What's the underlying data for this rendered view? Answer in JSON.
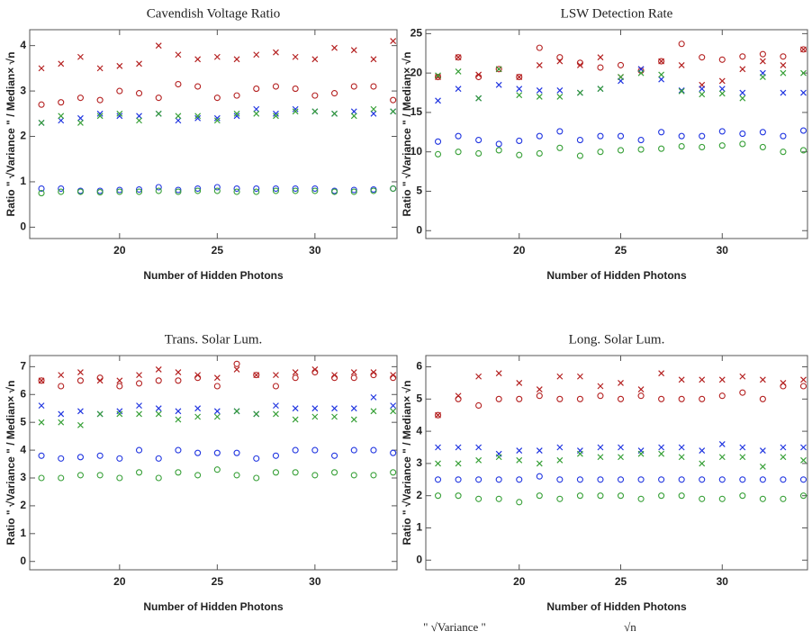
{
  "chart_data": [
    {
      "type": "scatter",
      "title": "Cavendish Voltage Ratio",
      "xlabel": "Number of Hidden Photons",
      "ylabel": "Ratio \" √Variance \" / Median× √n",
      "x": [
        16,
        17,
        18,
        19,
        20,
        21,
        22,
        23,
        24,
        25,
        26,
        27,
        28,
        29,
        30,
        31,
        32,
        33,
        34
      ],
      "xlim": [
        15.4,
        34.2
      ],
      "xticks": [
        20,
        25,
        30
      ],
      "ylim": [
        -0.25,
        4.35
      ],
      "yticks": [
        0,
        1,
        2,
        3,
        4
      ],
      "series": [
        {
          "color": "#b42020",
          "marker": "x",
          "values": [
            3.5,
            3.6,
            3.75,
            3.5,
            3.55,
            3.6,
            4.0,
            3.8,
            3.7,
            3.75,
            3.7,
            3.8,
            3.85,
            3.75,
            3.7,
            3.95,
            3.9,
            3.7,
            4.1
          ]
        },
        {
          "color": "#b42020",
          "marker": "o",
          "values": [
            2.7,
            2.75,
            2.85,
            2.8,
            3.0,
            2.95,
            2.85,
            3.15,
            3.1,
            2.85,
            2.9,
            3.05,
            3.1,
            3.05,
            2.9,
            2.95,
            3.1,
            3.1,
            2.8
          ]
        },
        {
          "color": "#2035e0",
          "marker": "x",
          "values": [
            2.3,
            2.35,
            2.4,
            2.5,
            2.45,
            2.45,
            2.5,
            2.35,
            2.4,
            2.4,
            2.45,
            2.6,
            2.5,
            2.6,
            2.55,
            2.5,
            2.55,
            2.5,
            2.55
          ]
        },
        {
          "color": "#2035e0",
          "marker": "o",
          "values": [
            0.85,
            0.85,
            0.8,
            0.8,
            0.82,
            0.83,
            0.88,
            0.82,
            0.85,
            0.88,
            0.85,
            0.85,
            0.85,
            0.85,
            0.85,
            0.8,
            0.82,
            0.83,
            0.85
          ]
        },
        {
          "color": "#38a038",
          "marker": "x",
          "values": [
            2.3,
            2.45,
            2.3,
            2.45,
            2.5,
            2.35,
            2.5,
            2.45,
            2.45,
            2.35,
            2.5,
            2.5,
            2.45,
            2.55,
            2.55,
            2.5,
            2.45,
            2.6,
            2.55
          ]
        },
        {
          "color": "#38a038",
          "marker": "o",
          "values": [
            0.75,
            0.78,
            0.78,
            0.77,
            0.78,
            0.78,
            0.8,
            0.78,
            0.8,
            0.8,
            0.78,
            0.78,
            0.8,
            0.8,
            0.8,
            0.78,
            0.78,
            0.8,
            0.85
          ]
        }
      ]
    },
    {
      "type": "scatter",
      "title": "LSW Detection Rate",
      "xlabel": "Number of Hidden Photons",
      "ylabel": "Ratio \" √Variance \" / Median× √n",
      "x": [
        16,
        17,
        18,
        19,
        20,
        21,
        22,
        23,
        24,
        25,
        26,
        27,
        28,
        29,
        30,
        31,
        32,
        33,
        34
      ],
      "xlim": [
        15.4,
        34.2
      ],
      "xticks": [
        20,
        25,
        30
      ],
      "ylim": [
        -1,
        25.5
      ],
      "yticks": [
        0,
        5,
        10,
        15,
        20,
        25
      ],
      "series": [
        {
          "color": "#b42020",
          "marker": "x",
          "values": [
            19.5,
            22,
            19.8,
            20.5,
            19.5,
            21,
            21.5,
            21,
            22,
            19.5,
            20.5,
            21.5,
            21,
            18.5,
            19,
            20.5,
            21.5,
            21,
            23
          ]
        },
        {
          "color": "#b42020",
          "marker": "o",
          "values": [
            19.5,
            22,
            19.5,
            20.5,
            19.5,
            23.2,
            22,
            21.3,
            20.7,
            21,
            20.3,
            21.5,
            23.7,
            22,
            21.7,
            22.1,
            22.4,
            22.1,
            23
          ]
        },
        {
          "color": "#2035e0",
          "marker": "x",
          "values": [
            16.5,
            18,
            16.8,
            18.5,
            18,
            17.8,
            17.8,
            17.5,
            18,
            19,
            20.5,
            19.2,
            17.8,
            18,
            18,
            17.5,
            20,
            17.5,
            17.5
          ]
        },
        {
          "color": "#2035e0",
          "marker": "o",
          "values": [
            11.3,
            12,
            11.5,
            11,
            11.4,
            12,
            12.6,
            11.5,
            12,
            12,
            11.5,
            12.5,
            12,
            12,
            12.6,
            12.3,
            12.5,
            12,
            12.7
          ]
        },
        {
          "color": "#38a038",
          "marker": "x",
          "values": [
            19.7,
            20.2,
            16.8,
            20.5,
            17.2,
            17,
            17,
            17.5,
            18,
            19.5,
            20,
            19.8,
            17.7,
            17.3,
            17.4,
            16.8,
            19.5,
            20,
            20
          ]
        },
        {
          "color": "#38a038",
          "marker": "o",
          "values": [
            9.7,
            10,
            9.8,
            10.2,
            9.6,
            9.8,
            10.5,
            9.5,
            10,
            10.2,
            10.3,
            10.4,
            10.7,
            10.6,
            10.8,
            11,
            10.6,
            10,
            10.2
          ]
        }
      ]
    },
    {
      "type": "scatter",
      "title": "Trans. Solar Lum.",
      "xlabel": "Number of Hidden Photons",
      "ylabel": "Ratio \" √Variance \" / Median× √n",
      "x": [
        16,
        17,
        18,
        19,
        20,
        21,
        22,
        23,
        24,
        25,
        26,
        27,
        28,
        29,
        30,
        31,
        32,
        33,
        34
      ],
      "xlim": [
        15.4,
        34.2
      ],
      "xticks": [
        20,
        25,
        30
      ],
      "ylim": [
        -0.3,
        7.4
      ],
      "yticks": [
        0,
        1,
        2,
        3,
        4,
        5,
        6,
        7
      ],
      "series": [
        {
          "color": "#b42020",
          "marker": "x",
          "values": [
            6.5,
            6.7,
            6.8,
            6.5,
            6.5,
            6.7,
            6.9,
            6.8,
            6.7,
            6.6,
            6.9,
            6.7,
            6.7,
            6.8,
            6.9,
            6.7,
            6.8,
            6.8,
            6.7
          ]
        },
        {
          "color": "#b42020",
          "marker": "o",
          "values": [
            6.5,
            6.3,
            6.5,
            6.6,
            6.3,
            6.4,
            6.5,
            6.5,
            6.6,
            6.3,
            7.1,
            6.7,
            6.3,
            6.6,
            6.8,
            6.6,
            6.6,
            6.7,
            6.6
          ]
        },
        {
          "color": "#2035e0",
          "marker": "x",
          "values": [
            5.6,
            5.3,
            5.4,
            5.3,
            5.4,
            5.6,
            5.5,
            5.4,
            5.5,
            5.4,
            5.4,
            5.3,
            5.6,
            5.5,
            5.5,
            5.5,
            5.5,
            5.9,
            5.6
          ]
        },
        {
          "color": "#2035e0",
          "marker": "o",
          "values": [
            3.8,
            3.7,
            3.75,
            3.8,
            3.7,
            4.0,
            3.7,
            4.0,
            3.9,
            3.9,
            3.9,
            3.7,
            3.8,
            4.0,
            4.0,
            3.8,
            4.0,
            4.0,
            3.9
          ]
        },
        {
          "color": "#38a038",
          "marker": "x",
          "values": [
            5.0,
            5.0,
            4.9,
            5.3,
            5.3,
            5.3,
            5.3,
            5.1,
            5.2,
            5.2,
            5.4,
            5.3,
            5.3,
            5.1,
            5.2,
            5.2,
            5.1,
            5.4,
            5.4
          ]
        },
        {
          "color": "#38a038",
          "marker": "o",
          "values": [
            3.0,
            3.0,
            3.1,
            3.1,
            3.0,
            3.2,
            3.0,
            3.2,
            3.1,
            3.3,
            3.1,
            3.0,
            3.2,
            3.2,
            3.1,
            3.2,
            3.1,
            3.1,
            3.2
          ]
        }
      ]
    },
    {
      "type": "scatter",
      "title": "Long. Solar Lum.",
      "xlabel": "Number of Hidden Photons",
      "ylabel": "Ratio \" √Variance \" / Median× √n",
      "x": [
        16,
        17,
        18,
        19,
        20,
        21,
        22,
        23,
        24,
        25,
        26,
        27,
        28,
        29,
        30,
        31,
        32,
        33,
        34
      ],
      "xlim": [
        15.4,
        34.2
      ],
      "xticks": [
        20,
        25,
        30
      ],
      "ylim": [
        -0.3,
        6.35
      ],
      "yticks": [
        0,
        1,
        2,
        3,
        4,
        5,
        6
      ],
      "series": [
        {
          "color": "#b42020",
          "marker": "x",
          "values": [
            4.5,
            5.1,
            5.7,
            5.8,
            5.5,
            5.3,
            5.7,
            5.7,
            5.4,
            5.5,
            5.3,
            5.8,
            5.6,
            5.6,
            5.6,
            5.7,
            5.6,
            5.5,
            5.6
          ]
        },
        {
          "color": "#b42020",
          "marker": "o",
          "values": [
            4.5,
            5.0,
            4.8,
            5.0,
            5.0,
            5.1,
            5.0,
            5.0,
            5.1,
            5.0,
            5.1,
            5.0,
            5.0,
            5.0,
            5.1,
            5.2,
            5.0,
            5.4,
            5.4
          ]
        },
        {
          "color": "#2035e0",
          "marker": "x",
          "values": [
            3.5,
            3.5,
            3.5,
            3.3,
            3.4,
            3.4,
            3.5,
            3.4,
            3.5,
            3.5,
            3.4,
            3.5,
            3.5,
            3.4,
            3.6,
            3.5,
            3.4,
            3.5,
            3.5
          ]
        },
        {
          "color": "#2035e0",
          "marker": "o",
          "values": [
            2.5,
            2.5,
            2.5,
            2.5,
            2.5,
            2.6,
            2.5,
            2.5,
            2.5,
            2.5,
            2.5,
            2.5,
            2.5,
            2.5,
            2.5,
            2.5,
            2.5,
            2.5,
            2.5
          ]
        },
        {
          "color": "#38a038",
          "marker": "x",
          "values": [
            3.0,
            3.0,
            3.1,
            3.2,
            3.1,
            3.0,
            3.1,
            3.3,
            3.2,
            3.2,
            3.3,
            3.3,
            3.2,
            3.0,
            3.2,
            3.2,
            2.9,
            3.2,
            3.1
          ]
        },
        {
          "color": "#38a038",
          "marker": "o",
          "values": [
            2.0,
            2.0,
            1.9,
            1.9,
            1.8,
            2.0,
            1.9,
            2.0,
            2.0,
            2.0,
            1.9,
            2.0,
            2.0,
            1.9,
            1.9,
            2.0,
            1.9,
            1.9,
            2.0
          ]
        }
      ]
    }
  ],
  "footer": [
    "\" √Variance \"",
    "√n"
  ]
}
